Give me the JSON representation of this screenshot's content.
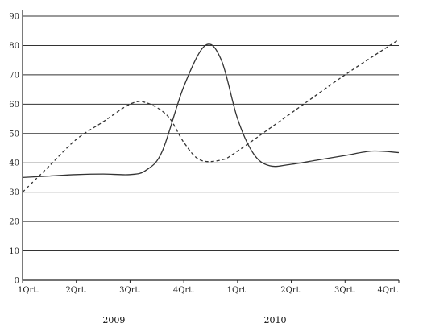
{
  "chart_data": {
    "type": "line",
    "title": "",
    "xlabel": "",
    "ylabel": "",
    "categories": [
      "1Qrt.",
      "2Qrt.",
      "3Qrt.",
      "4Qrt.",
      "1Qrt.",
      "2Qrt.",
      "3Qrt.",
      "4Qrt."
    ],
    "year_labels": [
      "2009",
      "2010"
    ],
    "y_ticks": [
      "0",
      "10",
      "20",
      "30",
      "40",
      "50",
      "60",
      "70",
      "80",
      "90"
    ],
    "ylim": [
      0,
      90
    ],
    "grid": true,
    "legend": "none",
    "series": [
      {
        "style": "solid",
        "color": "#333333",
        "x": [
          0,
          0.5,
          1,
          1.5,
          2,
          2.3,
          2.6,
          3,
          3.4,
          3.7,
          4,
          4.3,
          4.6,
          5,
          5.5,
          6,
          6.5,
          7
        ],
        "y": [
          35,
          35.5,
          36,
          36.2,
          36,
          37.5,
          44,
          66,
          80,
          75,
          55,
          43,
          39,
          39.5,
          41,
          42.5,
          44,
          43.5
        ]
      },
      {
        "style": "dashed",
        "color": "#333333",
        "x": [
          0,
          0.5,
          1,
          1.5,
          2,
          2.3,
          2.7,
          3,
          3.3,
          3.7,
          4,
          5,
          6,
          7
        ],
        "y": [
          30,
          39,
          48,
          54,
          60,
          60.5,
          56,
          47,
          41,
          41,
          44,
          57,
          70,
          82
        ]
      }
    ]
  }
}
